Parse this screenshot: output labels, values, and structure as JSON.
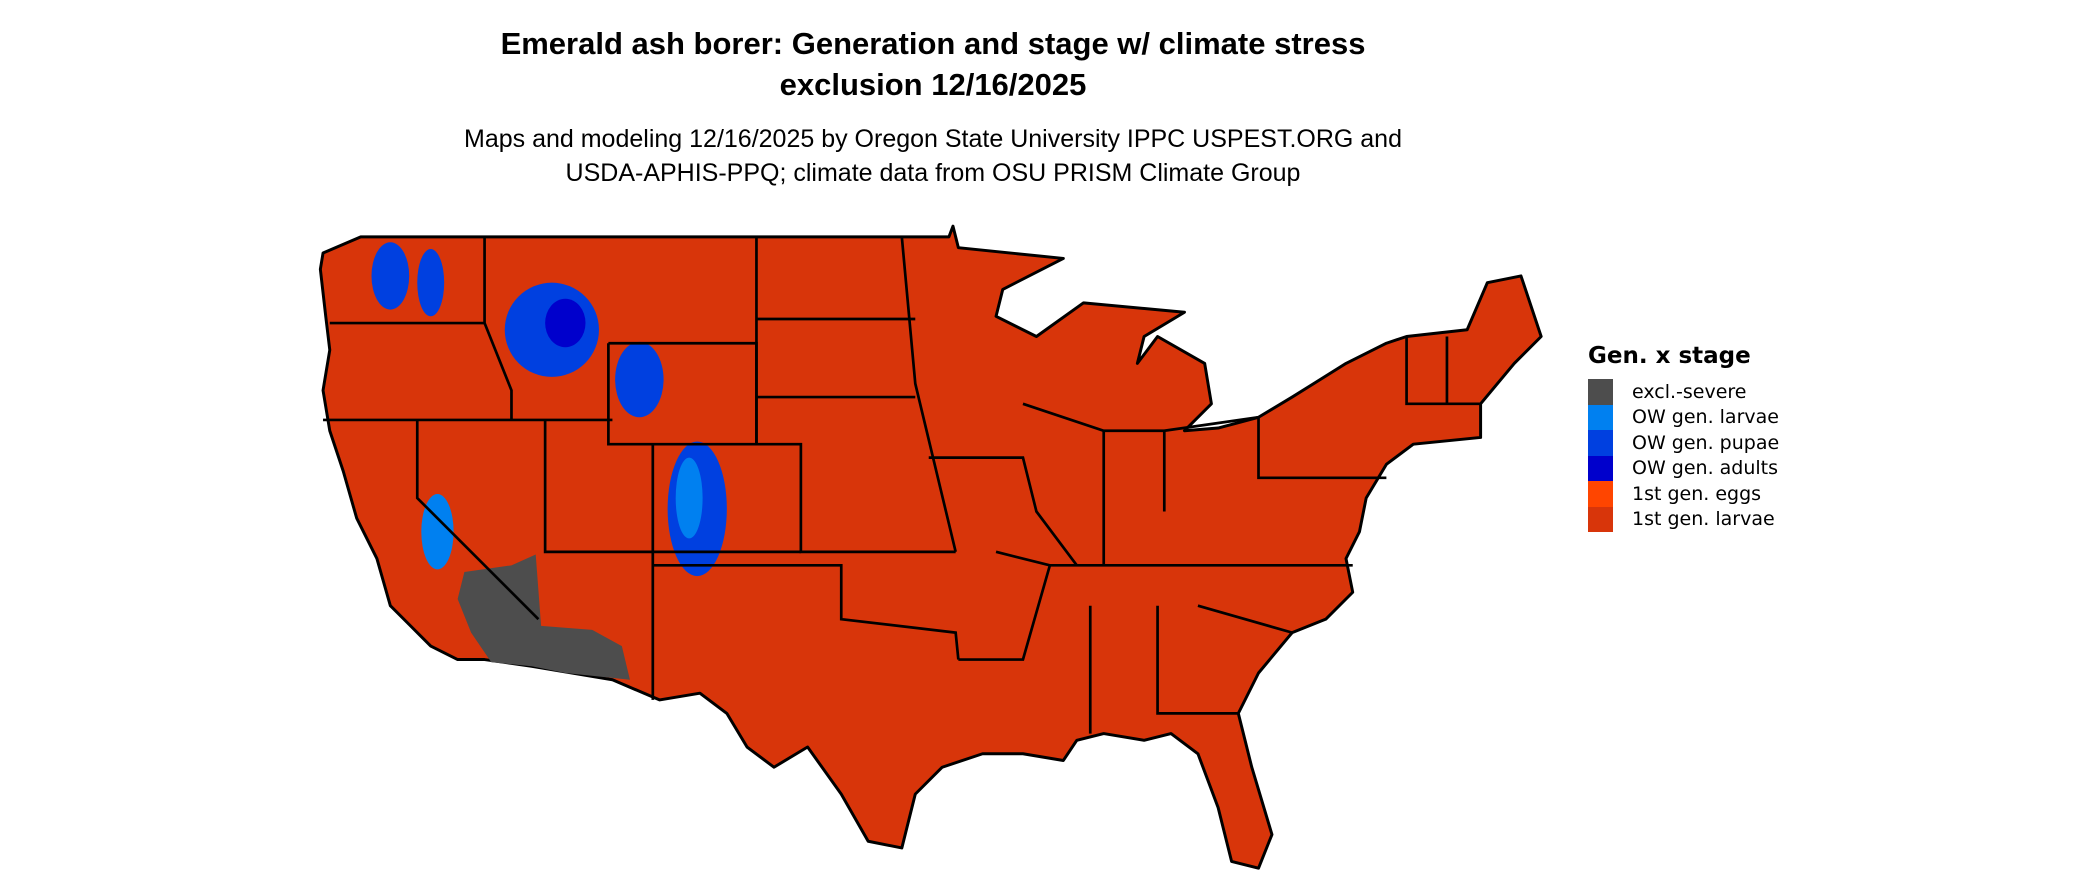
{
  "title": {
    "line1": "Emerald ash borer: Generation and stage w/ climate stress",
    "line2": "exclusion 12/16/2025"
  },
  "subtitle": {
    "line1": "Maps and modeling 12/16/2025 by Oregon State University IPPC USPEST.ORG and",
    "line2": "USDA-APHIS-PPQ; climate data from OSU PRISM Climate Group"
  },
  "legend": {
    "title": "Gen. x stage",
    "items": [
      {
        "label": "excl.-severe",
        "color": "#4d4d4d"
      },
      {
        "label": "OW gen. larvae",
        "color": "#0080f0"
      },
      {
        "label": "OW gen. pupae",
        "color": "#0040e0"
      },
      {
        "label": "OW gen. adults",
        "color": "#0000cc"
      },
      {
        "label": "1st gen. eggs",
        "color": "#ff4500"
      },
      {
        "label": "1st gen. larvae",
        "color": "#d8350a"
      }
    ]
  },
  "map": {
    "region": "Contiguous United States",
    "dominant_class": "1st gen. larvae",
    "border_color": "#000000"
  }
}
